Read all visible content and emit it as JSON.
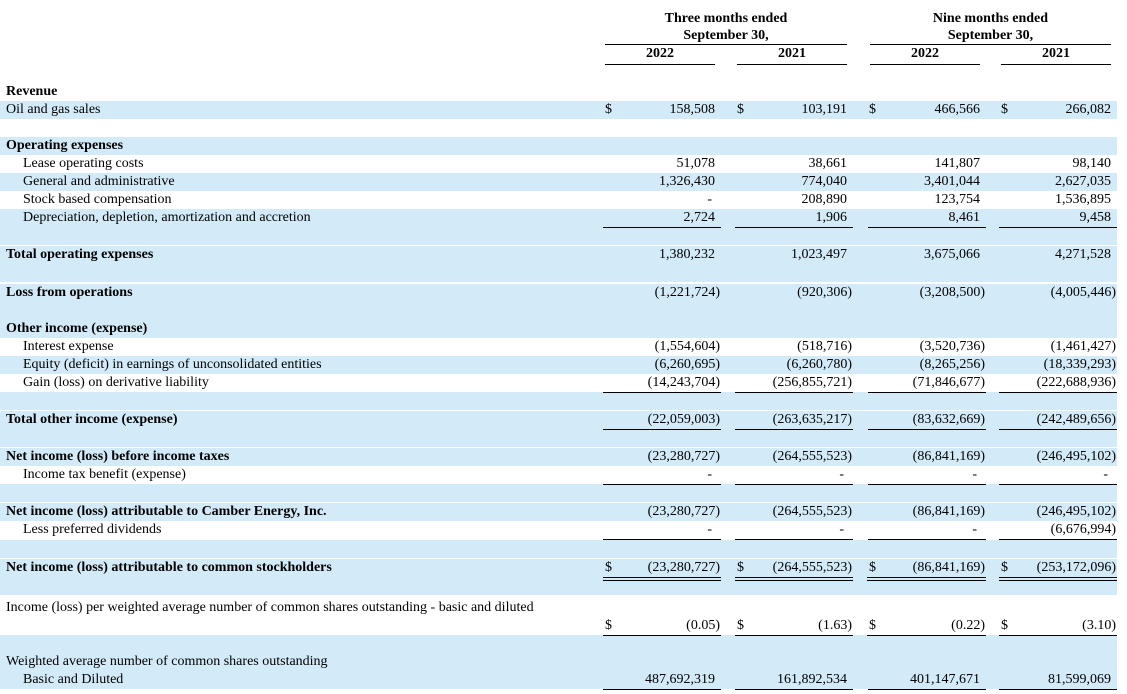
{
  "header": {
    "groups": [
      {
        "title": "Three months ended",
        "period": "September 30,",
        "years": [
          "2022",
          "2021"
        ]
      },
      {
        "title": "Nine months ended",
        "period": "September 30,",
        "years": [
          "2022",
          "2021"
        ]
      }
    ]
  },
  "rows": [
    {
      "label": "Revenue",
      "bold": true
    },
    {
      "label": "Oil and gas sales",
      "currency": "$",
      "values": [
        "158,508",
        "103,191",
        "466,566",
        "266,082"
      ]
    },
    {
      "label": "Operating expenses",
      "bold": true
    },
    {
      "label": "Lease operating costs",
      "indent": true,
      "values": [
        "51,078",
        "38,661",
        "141,807",
        "98,140"
      ]
    },
    {
      "label": "General and administrative",
      "indent": true,
      "values": [
        "1,326,430",
        "774,040",
        "3,401,044",
        "2,627,035"
      ]
    },
    {
      "label": "Stock based compensation",
      "indent": true,
      "values": [
        "-",
        "208,890",
        "123,754",
        "1,536,895"
      ]
    },
    {
      "label": "Depreciation, depletion, amortization and accretion",
      "indent": true,
      "underline": "single",
      "values": [
        "2,724",
        "1,906",
        "8,461",
        "9,458"
      ]
    },
    {
      "label": "Total operating expenses",
      "bold": true,
      "values": [
        "1,380,232",
        "1,023,497",
        "3,675,066",
        "4,271,528"
      ]
    },
    {
      "label": "Loss from operations",
      "bold": true,
      "values": [
        "(1,221,724)",
        "(920,306)",
        "(3,208,500)",
        "(4,005,446)"
      ]
    },
    {
      "label": "Other income (expense)",
      "bold": true
    },
    {
      "label": "Interest expense",
      "indent": true,
      "values": [
        "(1,554,604)",
        "(518,716)",
        "(3,520,736)",
        "(1,461,427)"
      ]
    },
    {
      "label": "Equity (deficit) in earnings of unconsolidated entities",
      "indent": true,
      "values": [
        "(6,260,695)",
        "(6,260,780)",
        "(8,265,256)",
        "(18,339,293)"
      ]
    },
    {
      "label": "Gain (loss) on derivative liability",
      "indent": true,
      "underline": "single",
      "values": [
        "(14,243,704)",
        "(256,855,721)",
        "(71,846,677)",
        "(222,688,936)"
      ]
    },
    {
      "label": "Total other income (expense)",
      "bold": true,
      "underline": "single",
      "values": [
        "(22,059,003)",
        "(263,635,217)",
        "(83,632,669)",
        "(242,489,656)"
      ]
    },
    {
      "label": "Net income (loss) before income taxes",
      "bold": true,
      "values": [
        "(23,280,727)",
        "(264,555,523)",
        "(86,841,169)",
        "(246,495,102)"
      ]
    },
    {
      "label": "Income tax benefit (expense)",
      "indent": true,
      "underline": "single",
      "values": [
        "-",
        "-",
        "-",
        "-"
      ]
    },
    {
      "label": "Net income (loss) attributable to Camber Energy, Inc.",
      "bold": true,
      "values": [
        "(23,280,727)",
        "(264,555,523)",
        "(86,841,169)",
        "(246,495,102)"
      ]
    },
    {
      "label": "Less preferred dividends",
      "indent": true,
      "underline": "single",
      "values": [
        "-",
        "-",
        "-",
        "(6,676,994)"
      ]
    },
    {
      "label": "Net income (loss) attributable to common stockholders",
      "bold": true,
      "currency": "$",
      "underline": "double",
      "values": [
        "(23,280,727)",
        "(264,555,523)",
        "(86,841,169)",
        "(253,172,096)"
      ]
    },
    {
      "label": "Income (loss) per weighted average number of common shares outstanding - basic and diluted",
      "currency": "$",
      "underline": "single",
      "values": [
        "(0.05)",
        "(1.63)",
        "(0.22)",
        "(3.10)"
      ]
    },
    {
      "label": "Weighted average number of common shares outstanding"
    },
    {
      "label": "Basic and Diluted",
      "indent": true,
      "underline": "single",
      "values": [
        "487,692,319",
        "161,892,534",
        "401,147,671",
        "81,599,069"
      ]
    }
  ]
}
